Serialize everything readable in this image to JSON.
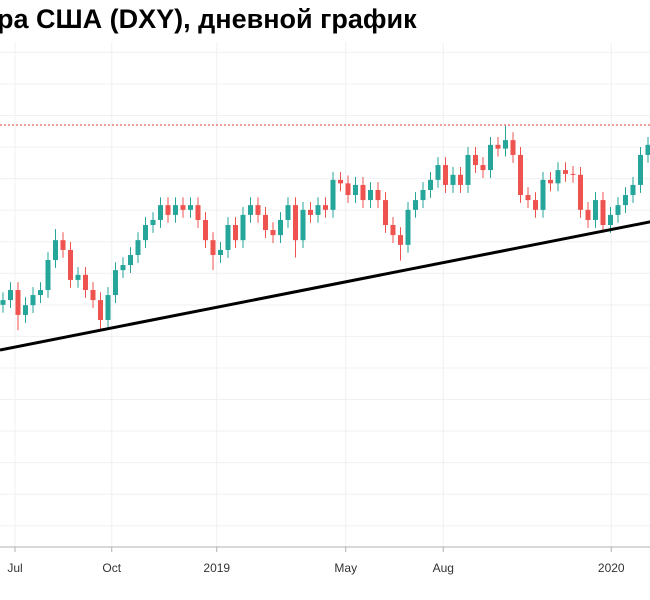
{
  "chart_data": {
    "type": "candlestick",
    "title": "ра США (DXY), дневной график",
    "ylim": [
      86.39,
      103.66
    ],
    "ygrid": [
      87,
      88,
      89,
      90,
      91,
      92,
      93,
      94,
      95,
      96,
      97,
      98,
      99,
      100,
      101,
      102,
      103
    ],
    "xticks": [
      {
        "value": 1.6,
        "label": "Jul"
      },
      {
        "value": 14.5,
        "label": "Oct"
      },
      {
        "value": 28.5,
        "label": "2019"
      },
      {
        "value": 45.7,
        "label": "May"
      },
      {
        "value": 58.7,
        "label": "Aug"
      },
      {
        "value": 81.1,
        "label": "2020"
      }
    ],
    "up_color": "#26a69a",
    "down_color": "#ef5350",
    "open": [
      94.0,
      94.15,
      94.47,
      93.68,
      93.99,
      94.31,
      94.47,
      95.42,
      96.05,
      95.74,
      94.79,
      94.95,
      94.47,
      94.15,
      93.52,
      94.31,
      95.1,
      95.26,
      95.58,
      96.05,
      96.53,
      96.69,
      97.16,
      96.85,
      97.16,
      97.01,
      97.16,
      96.69,
      96.05,
      95.58,
      95.74,
      96.53,
      96.05,
      96.85,
      97.16,
      96.85,
      96.37,
      96.21,
      96.69,
      97.16,
      96.05,
      97.01,
      96.85,
      97.16,
      97.01,
      97.96,
      97.85,
      97.48,
      97.8,
      97.32,
      97.64,
      97.32,
      96.53,
      96.21,
      95.9,
      97.01,
      97.32,
      97.64,
      97.96,
      98.43,
      97.8,
      98.12,
      97.8,
      98.75,
      98.43,
      98.27,
      99.07,
      98.95,
      99.22,
      98.75,
      97.48,
      97.32,
      97.01,
      97.96,
      97.85,
      98.27,
      98.15,
      98.12,
      97.01,
      96.69,
      97.32,
      96.53,
      96.85,
      97.16,
      97.48,
      97.8,
      98.75
    ],
    "high": [
      94.4,
      94.72,
      94.72,
      94.24,
      94.56,
      94.72,
      95.67,
      96.4,
      96.3,
      95.99,
      95.2,
      95.2,
      94.72,
      94.4,
      94.56,
      95.35,
      95.51,
      95.83,
      96.3,
      96.78,
      96.94,
      97.41,
      97.41,
      97.41,
      97.41,
      97.41,
      97.41,
      96.94,
      96.3,
      95.99,
      96.78,
      96.78,
      97.1,
      97.41,
      97.41,
      97.1,
      96.62,
      96.94,
      97.41,
      97.41,
      97.26,
      97.26,
      97.41,
      97.41,
      98.21,
      98.21,
      98.1,
      98.05,
      98.05,
      97.89,
      97.89,
      97.57,
      96.78,
      96.46,
      97.26,
      97.57,
      97.89,
      98.21,
      98.68,
      98.68,
      98.37,
      98.37,
      99.0,
      99.0,
      98.68,
      99.32,
      99.32,
      99.67,
      99.47,
      99.0,
      97.73,
      97.57,
      98.21,
      98.21,
      98.52,
      98.52,
      98.4,
      98.37,
      97.26,
      97.57,
      97.57,
      97.1,
      97.41,
      97.73,
      98.05,
      99.0,
      99.32
    ],
    "low": [
      93.75,
      93.9,
      93.2,
      93.43,
      93.74,
      94.06,
      94.22,
      95.17,
      95.49,
      94.54,
      94.54,
      94.22,
      93.9,
      93.2,
      93.27,
      94.06,
      94.85,
      95.01,
      95.33,
      95.8,
      96.28,
      96.44,
      96.6,
      96.6,
      96.76,
      96.76,
      96.44,
      95.8,
      95.1,
      95.33,
      95.49,
      95.8,
      95.8,
      96.6,
      96.6,
      96.12,
      95.96,
      95.96,
      96.44,
      95.5,
      95.8,
      96.6,
      96.6,
      96.76,
      96.76,
      97.6,
      97.23,
      97.23,
      97.07,
      97.07,
      97.07,
      96.28,
      95.96,
      95.4,
      95.65,
      96.76,
      97.07,
      97.39,
      97.71,
      97.55,
      97.55,
      97.55,
      97.55,
      98.18,
      98.02,
      98.02,
      98.7,
      98.7,
      98.5,
      97.23,
      97.07,
      96.76,
      96.76,
      97.6,
      97.6,
      97.9,
      97.87,
      96.76,
      96.44,
      96.44,
      96.28,
      96.28,
      96.6,
      96.91,
      97.23,
      97.55,
      98.5
    ],
    "close": [
      94.15,
      94.47,
      93.68,
      93.99,
      94.31,
      94.47,
      95.42,
      96.05,
      95.74,
      94.79,
      94.95,
      94.47,
      94.15,
      93.52,
      94.31,
      95.1,
      95.26,
      95.58,
      96.05,
      96.53,
      96.69,
      97.16,
      96.85,
      97.16,
      97.01,
      97.16,
      96.69,
      96.05,
      95.58,
      95.74,
      96.53,
      96.05,
      96.85,
      97.16,
      96.85,
      96.37,
      96.21,
      96.69,
      97.16,
      96.05,
      97.01,
      96.85,
      97.16,
      97.01,
      97.96,
      97.85,
      97.48,
      97.8,
      97.32,
      97.64,
      97.32,
      96.53,
      96.21,
      95.9,
      97.01,
      97.32,
      97.64,
      97.96,
      98.43,
      97.8,
      98.12,
      97.8,
      98.75,
      98.43,
      98.27,
      99.07,
      98.95,
      99.22,
      98.75,
      97.48,
      97.32,
      97.01,
      97.96,
      97.85,
      98.27,
      98.15,
      98.12,
      97.01,
      96.69,
      97.32,
      96.53,
      96.85,
      97.16,
      97.48,
      97.8,
      98.75,
      99.07
    ],
    "hline": {
      "value": 99.7,
      "color": "#e53935"
    },
    "trendline": {
      "x": [
        -0.4,
        86.3
      ],
      "y": [
        92.57,
        96.63
      ],
      "color": "#000000"
    }
  }
}
